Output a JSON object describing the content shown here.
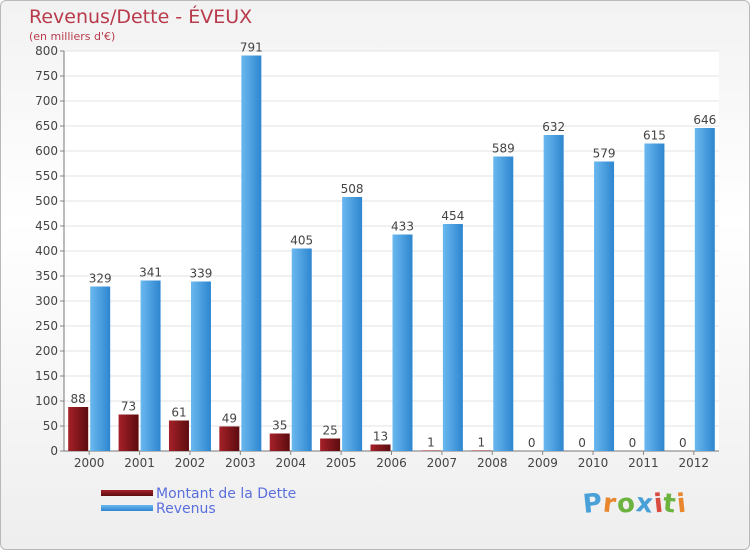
{
  "chart_data": {
    "type": "bar",
    "title": "Revenus/Dette - ÉVEUX",
    "subtitle": "(en milliers d'€)",
    "categories": [
      "2000",
      "2001",
      "2002",
      "2003",
      "2004",
      "2005",
      "2006",
      "2007",
      "2008",
      "2009",
      "2010",
      "2011",
      "2012"
    ],
    "series": [
      {
        "name": "Montant de la Dette",
        "values": [
          88,
          73,
          61,
          49,
          35,
          25,
          13,
          1,
          1,
          0,
          0,
          0,
          0
        ],
        "color": "#7a1218"
      },
      {
        "name": "Revenus",
        "values": [
          329,
          341,
          339,
          791,
          405,
          508,
          433,
          454,
          589,
          632,
          579,
          615,
          646
        ],
        "color": "#3f9be1"
      }
    ],
    "ylim": [
      0,
      800
    ],
    "yticks": [
      0,
      50,
      100,
      150,
      200,
      250,
      300,
      350,
      400,
      450,
      500,
      550,
      600,
      650,
      700,
      750,
      800
    ],
    "grid": true,
    "legend_position": "bottom-left"
  },
  "logo": {
    "letters": [
      "P",
      "r",
      "o",
      "x",
      "i",
      "t",
      "i"
    ],
    "colors": [
      "#4aa1d8",
      "#e8872e",
      "#6cb33f",
      "#4aa1d8",
      "#d94a3f",
      "#6cb33f",
      "#e8872e"
    ]
  }
}
